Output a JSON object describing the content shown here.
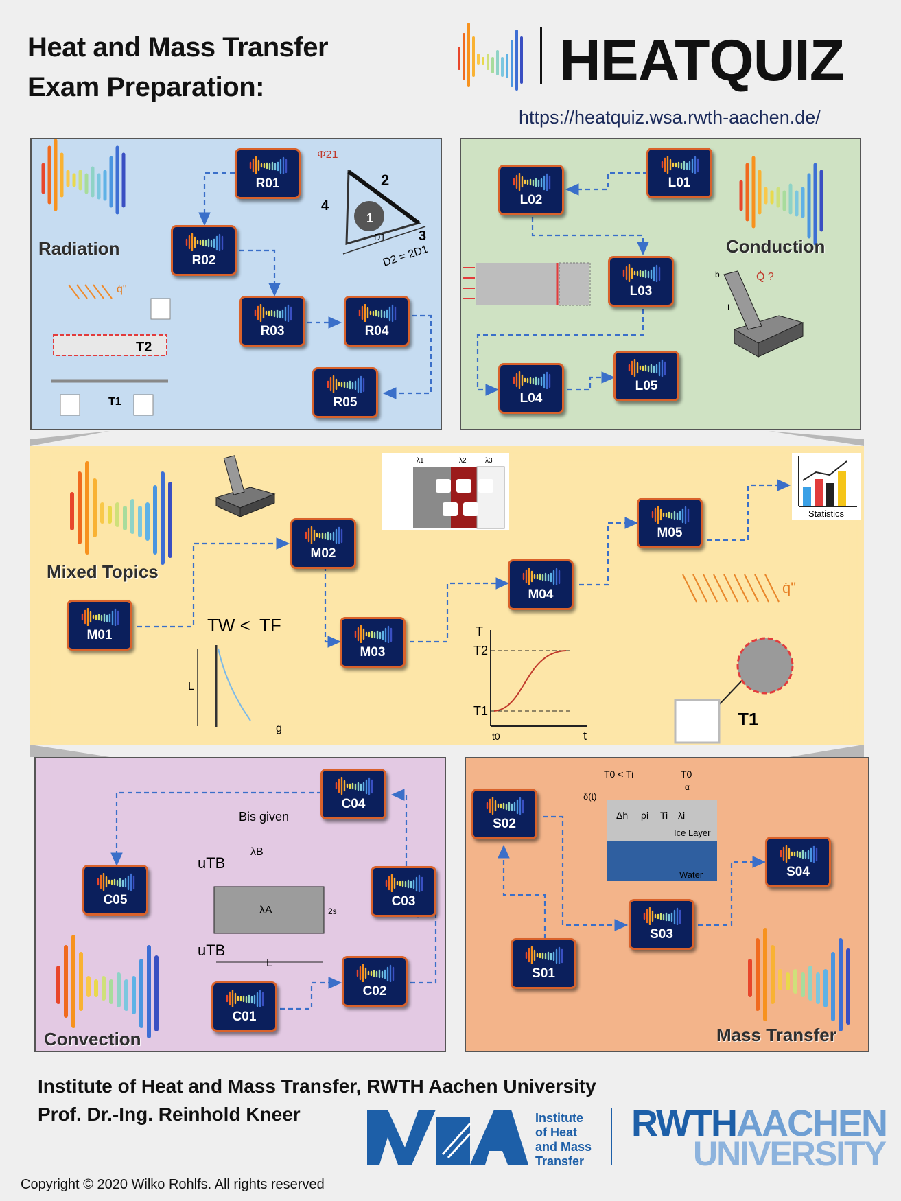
{
  "header": {
    "title_line1": "Heat and Mass Transfer",
    "title_line2": "Exam Preparation:",
    "brand": "HEATQUIZ",
    "url": "https://heatquiz.wsa.rwth-aachen.de/"
  },
  "sections": {
    "radiation": {
      "label": "Radiation",
      "nodes": [
        "R01",
        "R02",
        "R03",
        "R04",
        "R05"
      ],
      "sketch_labels": [
        "Φ̇21",
        "1",
        "2",
        "3",
        "4",
        "D1",
        "D2 = 2D1",
        "q̇\"",
        "T2",
        "T1"
      ]
    },
    "conduction": {
      "label": "Conduction",
      "nodes": [
        "L01",
        "L02",
        "L03",
        "L04",
        "L05"
      ],
      "sketch_labels": [
        "Q̇ ?",
        "b",
        "L"
      ]
    },
    "mixed": {
      "label": "Mixed Topics",
      "nodes": [
        "M01",
        "M02",
        "M03",
        "M04",
        "M05"
      ],
      "sketch_labels": [
        "TW <",
        "TF",
        "L",
        "g",
        "T",
        "T2",
        "T1",
        "t0",
        "t",
        "q̇\"",
        "T1",
        "Statistics",
        "λ1",
        "λ2",
        "λ3"
      ]
    },
    "convection": {
      "label": "Convection",
      "nodes": [
        "C01",
        "C02",
        "C03",
        "C04",
        "C05"
      ],
      "sketch_labels": [
        "Bis given",
        "uTB",
        "λB",
        "λA",
        "2s",
        "L"
      ]
    },
    "mass": {
      "label": "Mass Transfer",
      "nodes": [
        "S01",
        "S02",
        "S03",
        "S04"
      ],
      "sketch_labels": [
        "T0 < Ti",
        "T0",
        "α",
        "δ(t)",
        "Δh",
        "ρi",
        "Ti",
        "λi",
        "Ice Layer",
        "Water"
      ]
    }
  },
  "footer": {
    "institute": "Institute of Heat and Mass Transfer, RWTH Aachen University",
    "professor": "Prof. Dr.-Ing. Reinhold Kneer",
    "wsa_line1": "Institute",
    "wsa_line2": "of Heat",
    "wsa_line3": "and Mass",
    "wsa_line4": "Transfer",
    "rwth_line1_a": "RWTH",
    "rwth_line1_b": "AACHEN",
    "rwth_line2": "UNIVERSITY",
    "copyright": "Copyright © 2020 Wilko Rohlfs. All rights reserved"
  },
  "colors": {
    "node_fill": "#0b1f5c",
    "node_border": "#d9622b",
    "arrow": "#3a6fc9",
    "radiation_bg": "#c6dcf1",
    "conduction_bg": "#cfe2c3",
    "mixed_bg": "#fde6a8",
    "convection_bg": "#e3c9e3",
    "mass_bg": "#f3b48a"
  }
}
